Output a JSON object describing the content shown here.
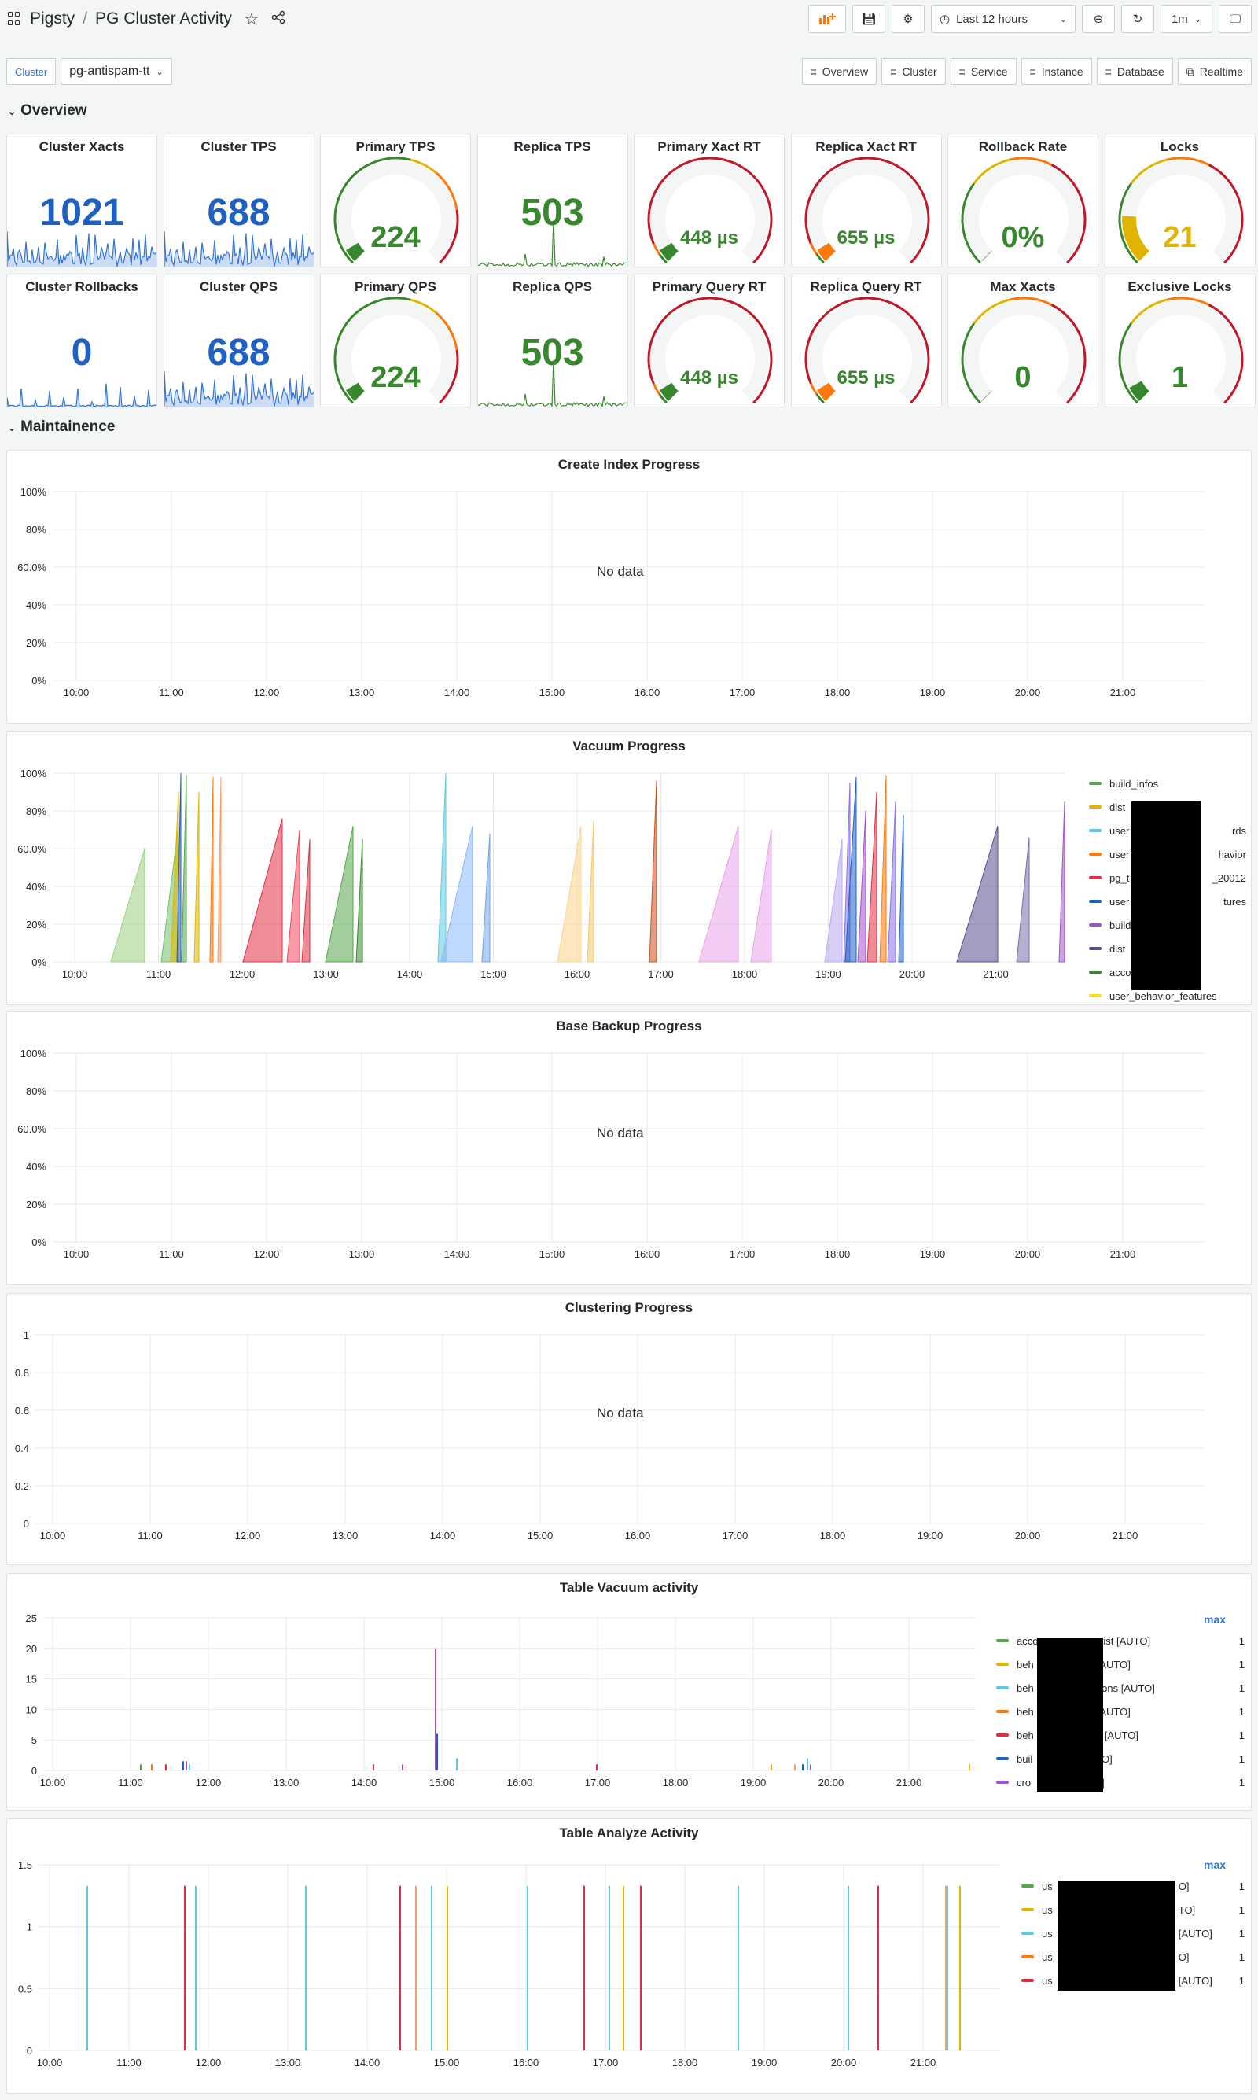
{
  "header": {
    "app": "Pigsty",
    "separator": "/",
    "title": "PG Cluster Activity",
    "time_range": "Last 12 hours",
    "refresh": "1m"
  },
  "variables": {
    "label": "Cluster",
    "value": "pg-antispam-tt"
  },
  "links": [
    "Overview",
    "Cluster",
    "Service",
    "Instance",
    "Database",
    "Realtime"
  ],
  "rows": {
    "overview": "Overview",
    "maintenance": "Maintainence"
  },
  "stats": {
    "cluster_xacts": {
      "title": "Cluster Xacts",
      "value": "1021"
    },
    "cluster_tps": {
      "title": "Cluster TPS",
      "value": "688"
    },
    "primary_tps": {
      "title": "Primary TPS",
      "value": "224"
    },
    "replica_tps": {
      "title": "Replica TPS",
      "value": "503"
    },
    "primary_xact_rt": {
      "title": "Primary Xact RT",
      "value": "448 µs"
    },
    "replica_xact_rt": {
      "title": "Replica Xact RT",
      "value": "655 µs"
    },
    "rollback_rate": {
      "title": "Rollback Rate",
      "value": "0%"
    },
    "locks": {
      "title": "Locks",
      "value": "21"
    },
    "cluster_rollbacks": {
      "title": "Cluster Rollbacks",
      "value": "0"
    },
    "cluster_qps": {
      "title": "Cluster QPS",
      "value": "688"
    },
    "primary_qps": {
      "title": "Primary QPS",
      "value": "224"
    },
    "replica_qps": {
      "title": "Replica QPS",
      "value": "503"
    },
    "primary_query_rt": {
      "title": "Primary Query RT",
      "value": "448 µs"
    },
    "replica_query_rt": {
      "title": "Replica Query RT",
      "value": "655 µs"
    },
    "max_xacts": {
      "title": "Max Xacts",
      "value": "0"
    },
    "exclusive_locks": {
      "title": "Exclusive Locks",
      "value": "1"
    }
  },
  "colors": {
    "blue": "#1f60c4",
    "green": "#37872d",
    "yellow": "#e0b400",
    "orange": "#ff780a",
    "red": "#c4162a",
    "gauge_bg": "#f4f5f5"
  },
  "no_data": "No data",
  "panels": {
    "create_index": {
      "title": "Create Index Progress"
    },
    "vacuum": {
      "title": "Vacuum Progress"
    },
    "base_backup": {
      "title": "Base Backup Progress"
    },
    "clustering": {
      "title": "Clustering Progress"
    },
    "table_vacuum": {
      "title": "Table Vacuum activity"
    },
    "table_analyze": {
      "title": "Table Analyze Activity"
    }
  },
  "axes": {
    "percent": [
      "100%",
      "80%",
      "60.0%",
      "40%",
      "20%",
      "0%"
    ],
    "unit": [
      "1",
      "0.8",
      "0.6",
      "0.4",
      "0.2",
      "0"
    ],
    "vac": [
      "25",
      "20",
      "15",
      "10",
      "5",
      "0"
    ],
    "ana": [
      "1.5",
      "1",
      "0.5",
      "0"
    ],
    "time": [
      "10:00",
      "11:00",
      "12:00",
      "13:00",
      "14:00",
      "15:00",
      "16:00",
      "17:00",
      "18:00",
      "19:00",
      "20:00",
      "21:00"
    ]
  },
  "vacuum_legend": [
    {
      "label": "build_infos",
      "color": "#56a64b"
    },
    {
      "label": "dist",
      "color": "#e0b400"
    },
    {
      "label": "user",
      "suffix": "rds",
      "color": "#5fc9e0"
    },
    {
      "label": "user",
      "suffix": "havior",
      "color": "#ff780a"
    },
    {
      "label": "pg_t",
      "suffix": "_20012",
      "color": "#e02f44"
    },
    {
      "label": "user",
      "suffix": "tures",
      "color": "#1f60c4"
    },
    {
      "label": "build",
      "color": "#a352cc"
    },
    {
      "label": "dist",
      "color": "#5a4d8e"
    },
    {
      "label": "acco",
      "color": "#37872d"
    },
    {
      "label": "user_behavior_features",
      "color": "#fade2a"
    }
  ],
  "table_vacuum_legend": {
    "header": "max",
    "items": [
      {
        "label": "acco",
        "suffix": "list [AUTO]",
        "max": "1",
        "color": "#56a64b"
      },
      {
        "label": "beh",
        "suffix": "[AUTO]",
        "max": "1",
        "color": "#e0b400"
      },
      {
        "label": "beh",
        "suffix": "tions [AUTO]",
        "max": "1",
        "color": "#5fc9e0"
      },
      {
        "label": "beh",
        "suffix": "[AUTO]",
        "max": "1",
        "color": "#ff780a"
      },
      {
        "label": "beh",
        "suffix": "s [AUTO]",
        "max": "1",
        "color": "#e02f44"
      },
      {
        "label": "buil",
        "suffix": "TO]",
        "max": "1",
        "color": "#1f60c4"
      },
      {
        "label": "cro",
        "suffix": "O]",
        "max": "1",
        "color": "#a352cc"
      }
    ]
  },
  "table_analyze_legend": {
    "header": "max",
    "items": [
      {
        "label": "us",
        "suffix": "O]",
        "max": "1",
        "color": "#56a64b"
      },
      {
        "label": "us",
        "suffix": "TO]",
        "max": "1",
        "color": "#e0b400"
      },
      {
        "label": "us",
        "suffix": "[AUTO]",
        "max": "1",
        "color": "#5fc9e0"
      },
      {
        "label": "us",
        "suffix": "O]",
        "max": "1",
        "color": "#ff780a"
      },
      {
        "label": "us",
        "suffix": "[AUTO]",
        "max": "1",
        "color": "#e02f44"
      }
    ]
  }
}
